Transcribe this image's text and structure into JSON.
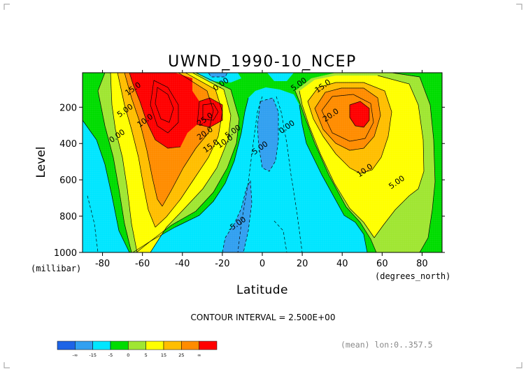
{
  "chart_data": {
    "type": "heatmap",
    "title": "UWND_1990-10_NCEP",
    "xlabel": "Latitude",
    "ylabel": "Level",
    "x_units": "(degrees_north)",
    "y_units": "(millibar)",
    "xlim": [
      -90,
      90
    ],
    "ylim": [
      1000,
      10
    ],
    "x_ticks": [
      -80,
      -60,
      -40,
      -20,
      0,
      20,
      40,
      60,
      80
    ],
    "x_tick_labels": [
      "-80",
      "-60",
      "-40",
      "-20",
      "0",
      "20",
      "40",
      "60",
      "80"
    ],
    "y_ticks": [
      200,
      400,
      600,
      800,
      1000
    ],
    "y_tick_labels": [
      "200",
      "400",
      "600",
      "800",
      "1000"
    ],
    "contour_interval_text": "CONTOUR INTERVAL = 2.500E+00",
    "contour_interval": 2.5,
    "footer_text": "(mean) lon:0..357.5",
    "contour_labels": [
      {
        "text": "15.0",
        "x": -64,
        "y": 110
      },
      {
        "text": "10.0",
        "x": -58,
        "y": 285
      },
      {
        "text": "5.00",
        "x": -68,
        "y": 230
      },
      {
        "text": "0.00",
        "x": -72,
        "y": 370
      },
      {
        "text": "0.00",
        "x": -20,
        "y": 85
      },
      {
        "text": "25.0",
        "x": -28,
        "y": 278
      },
      {
        "text": "20.0",
        "x": -28,
        "y": 355
      },
      {
        "text": "15.0",
        "x": -25,
        "y": 425
      },
      {
        "text": "10.0",
        "x": -18,
        "y": 400
      },
      {
        "text": "5.00",
        "x": -14,
        "y": 345
      },
      {
        "text": "-5.00",
        "x": -1,
        "y": 440
      },
      {
        "text": "0.00",
        "x": 13,
        "y": 320
      },
      {
        "text": "-5.00",
        "x": -12,
        "y": 855
      },
      {
        "text": "5.00",
        "x": 19,
        "y": 85
      },
      {
        "text": "15.0",
        "x": 31,
        "y": 95
      },
      {
        "text": "20.0",
        "x": 35,
        "y": 255
      },
      {
        "text": "10.0",
        "x": 52,
        "y": 560
      },
      {
        "text": "5.00",
        "x": 68,
        "y": 625
      }
    ],
    "legend": {
      "colors": [
        "#1e64e6",
        "#32a0f0",
        "#00e6ff",
        "#00dc00",
        "#a0e632",
        "#ffff00",
        "#ffbe00",
        "#ff8c00",
        "#ff0000"
      ],
      "labels": [
        "-∞",
        "-15",
        "-5",
        "0",
        "5",
        "15",
        "25",
        "∞"
      ]
    }
  }
}
